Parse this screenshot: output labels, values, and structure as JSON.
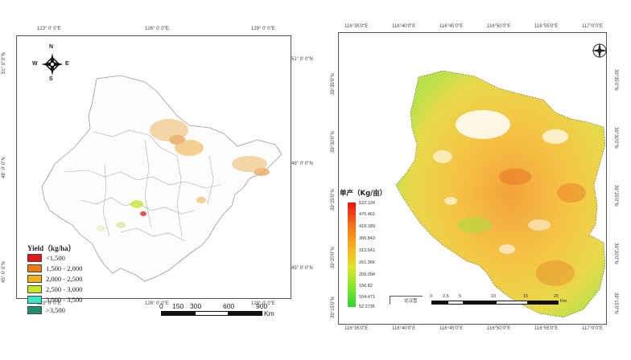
{
  "left_map": {
    "top_ticks": [
      "123° 0' 0\"E",
      "126° 0' 0\"E",
      "129° 0' 0\"E"
    ],
    "bottom_ticks": [
      "123° 0' 0\"E",
      "126° 0' 0\"E",
      "129° 0' 0\"E"
    ],
    "left_ticks": [
      "51° 0' 0\"N",
      "48° 0' 0\"N",
      "45° 0' 0\"N"
    ],
    "right_ticks": [
      "51° 0' 0\"N",
      "48° 0' 0\"N",
      "45° 0' 0\"N"
    ],
    "compass": {
      "n": "N",
      "s": "S",
      "e": "E",
      "w": "W"
    },
    "legend_title": "Yield（kg/ha）",
    "legend": [
      {
        "label": "<1,500",
        "color": "#e8141a"
      },
      {
        "label": "1,500 - 2,000",
        "color": "#f07a14"
      },
      {
        "label": "2,000 - 2,500",
        "color": "#f2b21f"
      },
      {
        "label": "2,500 - 3,000",
        "color": "#c8e628"
      },
      {
        "label": "3,000 - 3,500",
        "color": "#33e8c4"
      },
      {
        "label": ">3,500",
        "color": "#1f8f72"
      }
    ],
    "scale_bar": {
      "labels": [
        "0",
        "150",
        "300",
        "600",
        "900"
      ],
      "unit": "Km"
    }
  },
  "right_map": {
    "top_ticks": [
      "116°35'0\"E",
      "116°40'0\"E",
      "116°45'0\"E",
      "116°50'0\"E",
      "116°55'0\"E",
      "117°0'0\"E"
    ],
    "bottom_ticks": [
      "116°35'0\"E",
      "116°40'0\"E",
      "116°45'0\"E",
      "116°50'0\"E",
      "116°55'0\"E",
      "117°0'0\"E"
    ],
    "left_ticks": [
      "39°35'0\"N",
      "39°30'0\"N",
      "39°25'0\"N",
      "39°20'0\"N",
      "39°15'0\"N"
    ],
    "right_ticks": [
      "39°35'0\"N",
      "39°30'0\"N",
      "39°25'0\"N",
      "39°20'0\"N",
      "39°15'0\"N"
    ],
    "legend_title": "单产（Kg/亩）",
    "legend_values": [
      "522.139",
      "470.462",
      "418.189",
      "365.843",
      "313.641",
      "261.366",
      "209.094",
      "156.82",
      "104.471",
      "52.2735"
    ],
    "legend_gradient": [
      "#e8140f",
      "#f47216",
      "#f7b61e",
      "#d9e626",
      "#88e82a",
      "#2ed42e"
    ],
    "scale_unit": "Km",
    "scale_labels": [
      "0",
      "2.5",
      "5",
      "10",
      "15",
      "20"
    ],
    "note": "北汉营"
  }
}
